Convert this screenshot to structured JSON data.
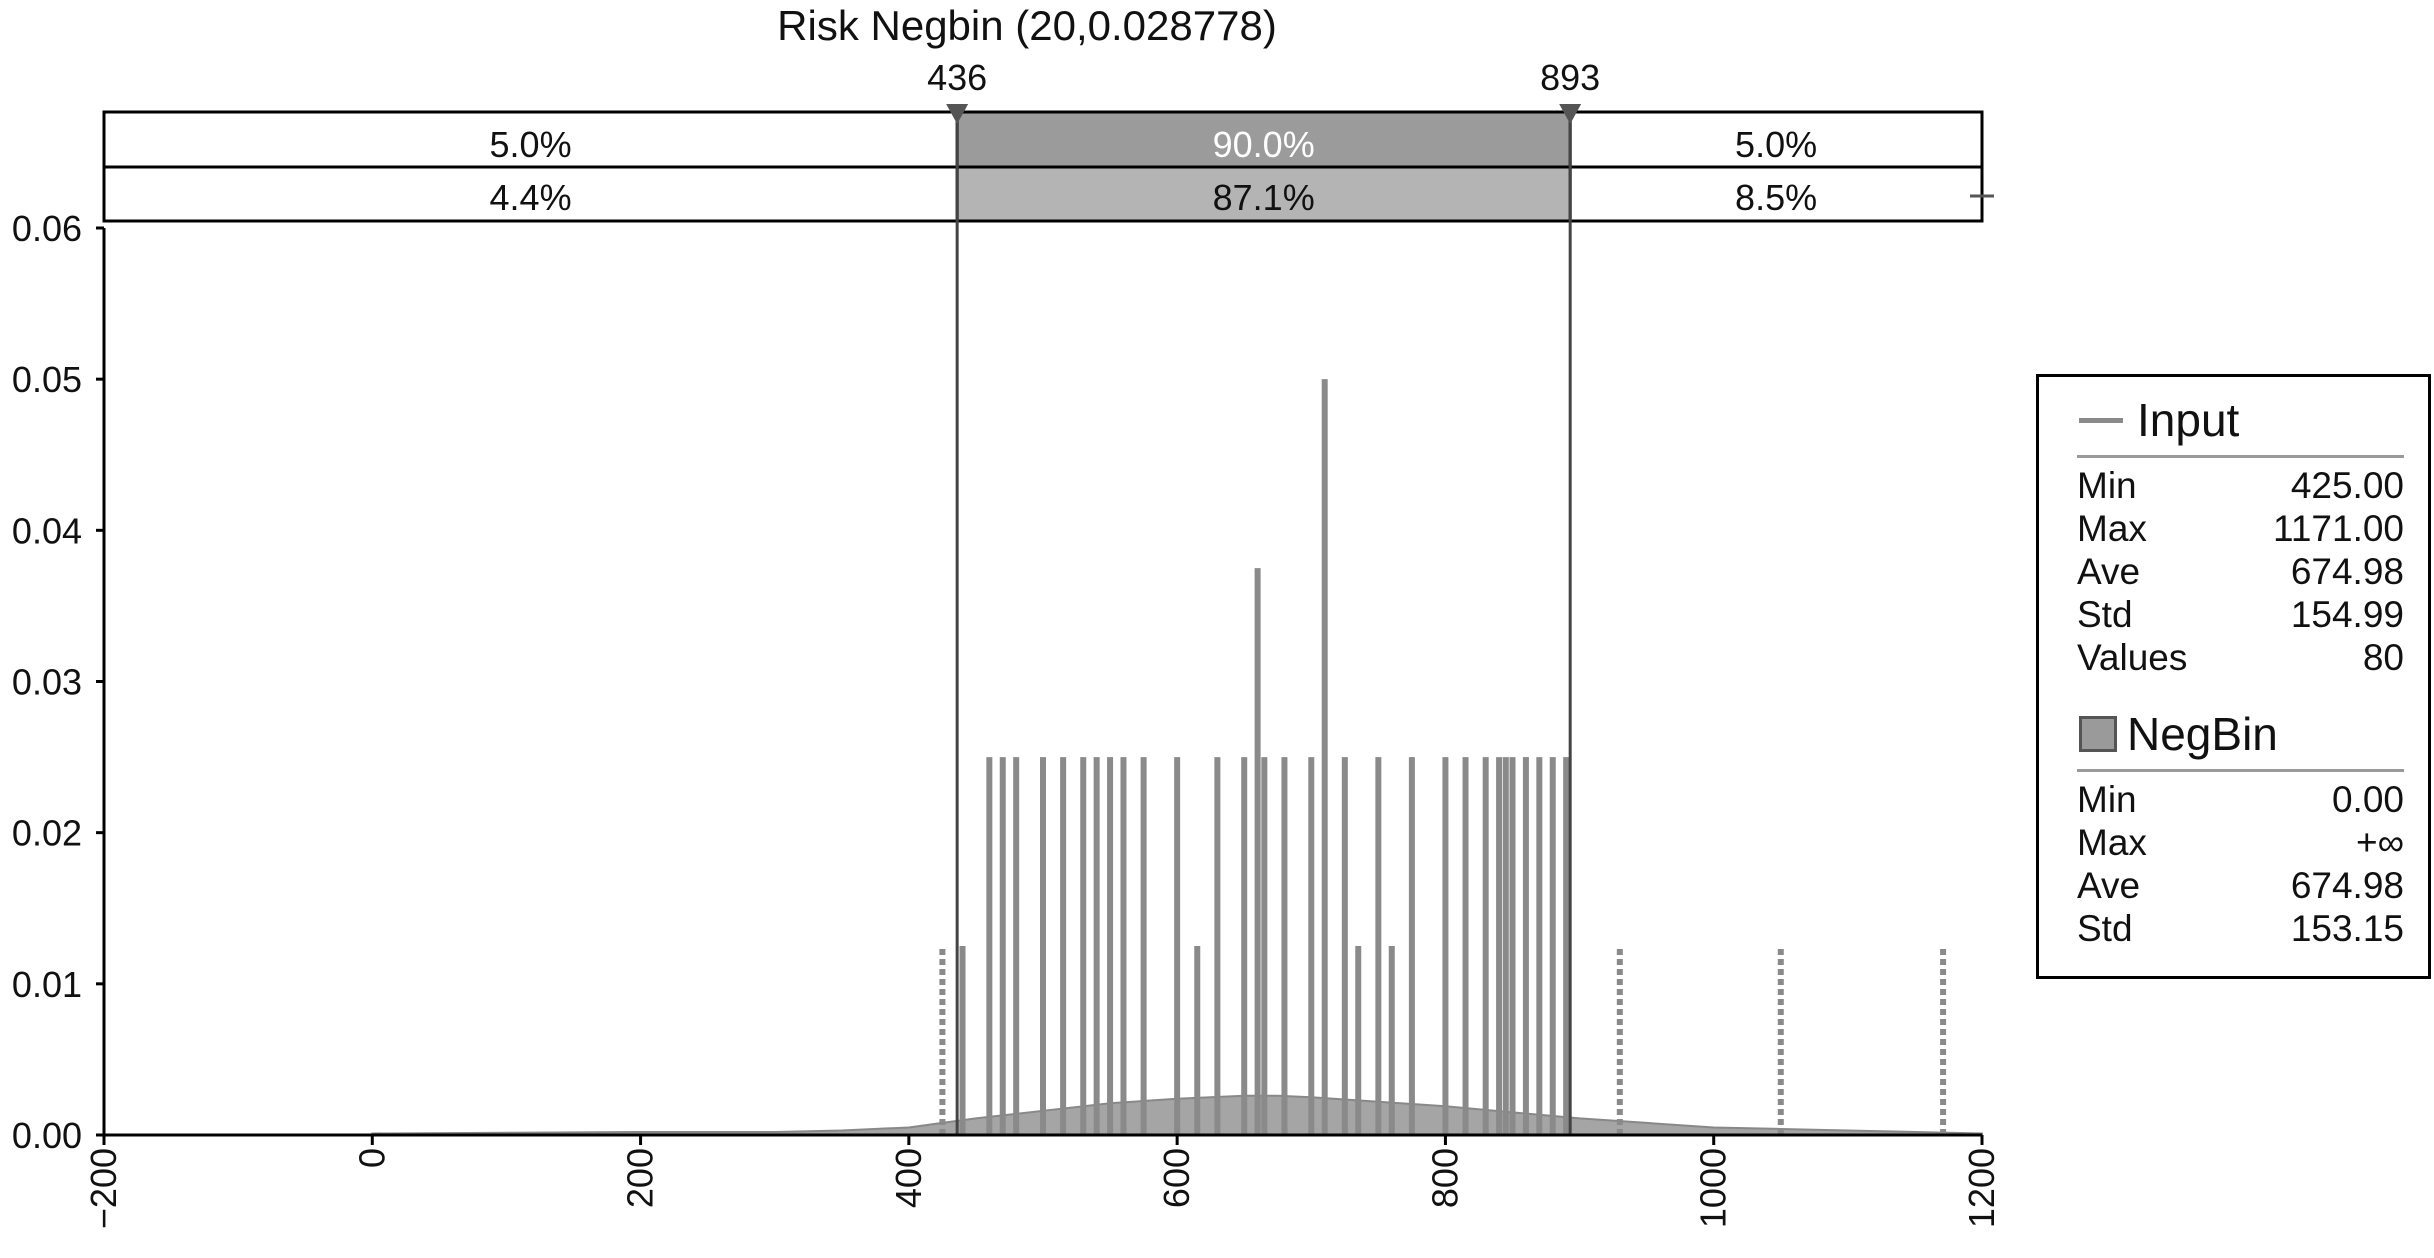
{
  "chart_data": {
    "type": "bar",
    "title": "Risk Negbin (20,0.028778)",
    "xlabel": "",
    "ylabel": "",
    "xlim": [
      -200,
      1200
    ],
    "ylim": [
      0,
      0.06
    ],
    "x_ticks": [
      -200,
      0,
      200,
      400,
      600,
      800,
      1000,
      1200
    ],
    "x_tick_labels": [
      "−200",
      "0",
      "200",
      "400",
      "600",
      "800",
      "1000",
      "1200"
    ],
    "y_ticks": [
      0,
      0.01,
      0.02,
      0.03,
      0.04,
      0.05,
      0.06
    ],
    "y_tick_labels": [
      "0.00",
      "0.01",
      "0.02",
      "0.03",
      "0.04",
      "0.05",
      "0.06"
    ],
    "grid": false,
    "legend_position": "right",
    "delimiters": {
      "left": {
        "value": 436,
        "label": "436"
      },
      "right": {
        "value": 893,
        "label": "893"
      }
    },
    "probability_bands": {
      "row1": [
        "5.0%",
        "90.0%",
        "5.0%"
      ],
      "row2": [
        "4.4%",
        "87.1%",
        "8.5%"
      ]
    },
    "series": [
      {
        "name": "Input",
        "style": "line",
        "x": [
          425,
          440,
          460,
          470,
          480,
          500,
          515,
          530,
          540,
          550,
          560,
          575,
          600,
          615,
          630,
          650,
          660,
          665,
          680,
          700,
          710,
          725,
          735,
          750,
          760,
          775,
          800,
          815,
          830,
          840,
          845,
          850,
          860,
          870,
          880,
          890,
          930,
          1050,
          1171
        ],
        "y": [
          0.0125,
          0.0125,
          0.025,
          0.025,
          0.025,
          0.025,
          0.025,
          0.025,
          0.025,
          0.025,
          0.025,
          0.025,
          0.025,
          0.0125,
          0.025,
          0.025,
          0.0375,
          0.025,
          0.025,
          0.025,
          0.05,
          0.025,
          0.0125,
          0.025,
          0.0125,
          0.025,
          0.025,
          0.025,
          0.025,
          0.025,
          0.025,
          0.025,
          0.025,
          0.025,
          0.025,
          0.025,
          0.0125,
          0.0125,
          0.0125
        ]
      },
      {
        "name": "NegBin",
        "style": "area",
        "x": [
          0,
          200,
          300,
          350,
          400,
          425,
          450,
          500,
          550,
          600,
          650,
          675,
          700,
          750,
          800,
          850,
          900,
          950,
          1000,
          1050,
          1100,
          1150,
          1200
        ],
        "y": [
          0.0001,
          0.0002,
          0.0002,
          0.0003,
          0.0005,
          0.0008,
          0.0011,
          0.0016,
          0.0021,
          0.0024,
          0.0026,
          0.0026,
          0.0025,
          0.0022,
          0.0019,
          0.0015,
          0.0011,
          0.0008,
          0.0005,
          0.0004,
          0.0003,
          0.0002,
          0.0001
        ]
      }
    ],
    "colors": {
      "input": "#8a8a8a",
      "negbin": "#a5a5a5",
      "band_middle_top": "#9b9b9b",
      "band_middle_bottom": "#b4b4b4"
    }
  },
  "legend": {
    "input": {
      "label": "Input",
      "stats": [
        {
          "name": "Min",
          "value": "425.00"
        },
        {
          "name": "Max",
          "value": "1171.00"
        },
        {
          "name": "Ave",
          "value": "674.98"
        },
        {
          "name": "Std",
          "value": "154.99"
        },
        {
          "name": "Values",
          "value": "80"
        }
      ]
    },
    "negbin": {
      "label": "NegBin",
      "stats": [
        {
          "name": "Min",
          "value": "0.00"
        },
        {
          "name": "Max",
          "value": "+∞"
        },
        {
          "name": "Ave",
          "value": "674.98"
        },
        {
          "name": "Std",
          "value": "153.15"
        }
      ]
    }
  }
}
